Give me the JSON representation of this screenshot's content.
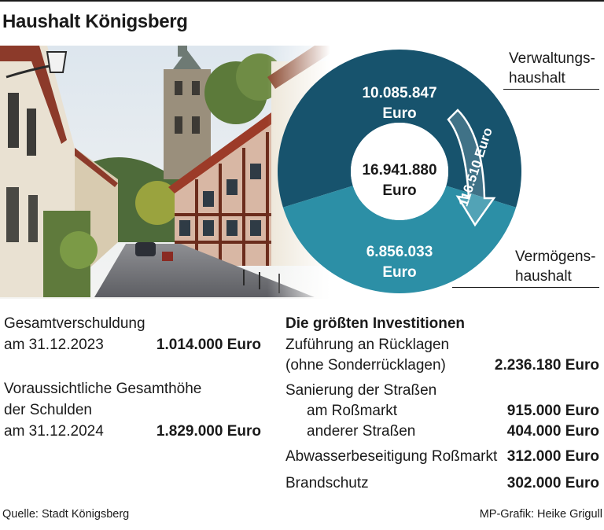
{
  "title": "Haushalt Königsberg",
  "chart_data": {
    "type": "pie",
    "center_value": "16.941.880",
    "center_unit": "Euro",
    "segments": [
      {
        "label": "Verwaltungshaushalt",
        "label_line1": "Verwaltungs-",
        "label_line2": "haushalt",
        "value": 10085847,
        "value_text": "10.085.847",
        "unit": "Euro",
        "color": "#17536d"
      },
      {
        "label": "Vermögenshaushalt",
        "label_line1": "Vermögens-",
        "label_line2": "haushalt",
        "value": 6856033,
        "value_text": "6.856.033",
        "unit": "Euro",
        "color": "#2c8fa6"
      }
    ],
    "transfer": {
      "value_text": "116.510 Euro",
      "value": 116510,
      "direction": "Verwaltungshaushalt → Vermögenshaushalt"
    }
  },
  "debt": {
    "item1_line1": "Gesamtverschuldung",
    "item1_line2": "am 31.12.2023",
    "item1_value": "1.014.000 Euro",
    "item2_line1": "Voraussichtliche Gesamthöhe",
    "item2_line2": "der Schulden",
    "item2_line3": "am 31.12.2024",
    "item2_value": "1.829.000 Euro"
  },
  "investments": {
    "heading": "Die größten Investitionen",
    "inv1_line1": "Zuführung an Rücklagen",
    "inv1_line2": "(ohne Sonderrücklagen)",
    "inv1_value": "2.236.180 Euro",
    "inv2_heading": "Sanierung der Straßen",
    "inv2a_label": "am Roßmarkt",
    "inv2a_value": "915.000 Euro",
    "inv2b_label": "anderer Straßen",
    "inv2b_value": "404.000 Euro",
    "inv3_label": "Abwasserbeseitigung Roßmarkt",
    "inv3_value": "312.000 Euro",
    "inv4_label": "Brandschutz",
    "inv4_value": "302.000 Euro"
  },
  "footer": {
    "source": "Quelle: Stadt Königsberg",
    "credit": "MP-Grafik: Heike Grigull"
  }
}
